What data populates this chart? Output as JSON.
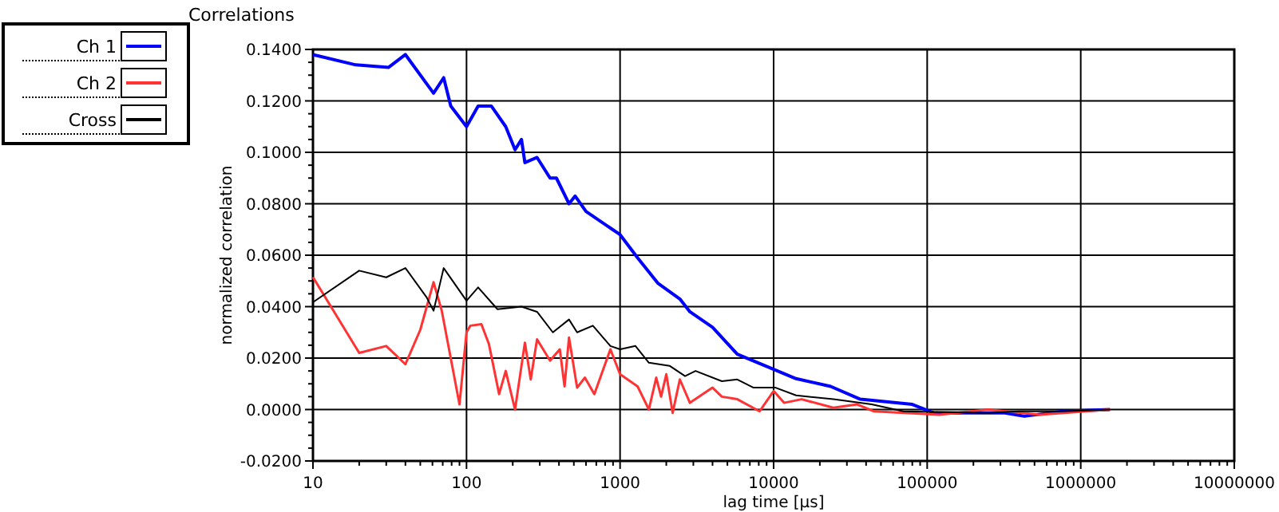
{
  "chart_data": {
    "type": "line",
    "title": "Correlations",
    "xlabel": "lag time [µs]",
    "ylabel": "normalized correlation",
    "log": "x",
    "grid": true,
    "legend": "top left",
    "marker": "none",
    "line_style": "solid",
    "xlim": [
      10,
      10000000
    ],
    "xticks": [
      10,
      100,
      1000,
      10000,
      100000,
      1000000,
      10000000
    ],
    "ylim": [
      -0.02,
      0.14
    ],
    "yticks": [
      {
        "value": -0.02,
        "label": "-0.0200"
      },
      {
        "value": 0,
        "label": "0.0000"
      },
      {
        "value": 0.02,
        "label": "0.0200"
      },
      {
        "value": 0.04,
        "label": "0.0400"
      },
      {
        "value": 0.06,
        "label": "0.0600"
      },
      {
        "value": 0.08,
        "label": "0.0800"
      },
      {
        "value": 0.1,
        "label": "0.1000"
      },
      {
        "value": 0.12,
        "label": "0.1200"
      },
      {
        "value": 0.14,
        "label": "0.1400"
      }
    ],
    "series": [
      {
        "name": "Ch 1",
        "color": "#0000ff",
        "x": [
          10,
          19,
          31,
          40,
          61,
          71,
          79,
          100,
          119,
          145,
          180,
          207,
          228,
          240,
          288,
          350,
          385,
          465,
          510,
          600,
          1000,
          1300,
          1770,
          2450,
          2850,
          4000,
          5800,
          8800,
          14000,
          23500,
          36700,
          80000,
          110000,
          320000,
          430000,
          760000,
          1550000
        ],
        "values": [
          0.138,
          0.134,
          0.133,
          0.138,
          0.123,
          0.129,
          0.118,
          0.11,
          0.118,
          0.118,
          0.11,
          0.101,
          0.105,
          0.096,
          0.098,
          0.09,
          0.09,
          0.08,
          0.083,
          0.077,
          0.068,
          0.059,
          0.049,
          0.043,
          0.038,
          0.032,
          0.0215,
          0.017,
          0.012,
          0.009,
          0.004,
          0.002,
          -0.0013,
          -0.0013,
          -0.0026,
          -0.0007,
          0
        ]
      },
      {
        "name": "Ch 2",
        "color": "#ff3333",
        "x": [
          10,
          20,
          30,
          40,
          50,
          61,
          69,
          90,
          100,
          106,
          125,
          140,
          163,
          180,
          207,
          240,
          262,
          288,
          350,
          405,
          435,
          465,
          525,
          590,
          680,
          865,
          1000,
          1300,
          1540,
          1720,
          1850,
          2000,
          2200,
          2450,
          2850,
          4000,
          4600,
          5800,
          8100,
          10000,
          11700,
          15200,
          24500,
          35000,
          45000,
          120000,
          250000,
          540000,
          1550000
        ],
        "values": [
          0.0515,
          0.022,
          0.0247,
          0.0176,
          0.031,
          0.0495,
          0.0384,
          0.002,
          0.03,
          0.0326,
          0.0332,
          0.0254,
          0.006,
          0.015,
          0,
          0.026,
          0.0117,
          0.0273,
          0.019,
          0.0234,
          0.009,
          0.028,
          0.0085,
          0.0124,
          0.006,
          0.0234,
          0.0137,
          0.009,
          0,
          0.0124,
          0.005,
          0.0137,
          -0.0013,
          0.0117,
          0.0026,
          0.0085,
          0.005,
          0.004,
          -0.0007,
          0.0072,
          0.0026,
          0.004,
          0.0007,
          0.002,
          -0.0007,
          -0.002,
          0,
          -0.002,
          0
        ]
      },
      {
        "name": "Cross",
        "color": "#000000",
        "x": [
          10,
          20,
          30,
          40,
          55,
          61,
          71,
          100,
          119,
          159,
          228,
          288,
          365,
          465,
          525,
          665,
          865,
          1000,
          1260,
          1540,
          2100,
          2650,
          3100,
          4600,
          5800,
          7400,
          10300,
          14000,
          24500,
          43500,
          70000,
          250000,
          400000,
          760000,
          1550000
        ],
        "values": [
          0.0417,
          0.054,
          0.0514,
          0.055,
          0.0436,
          0.0384,
          0.055,
          0.0423,
          0.0475,
          0.039,
          0.04,
          0.038,
          0.03,
          0.035,
          0.03,
          0.0326,
          0.0247,
          0.0234,
          0.0247,
          0.0182,
          0.017,
          0.013,
          0.015,
          0.011,
          0.0117,
          0.0085,
          0.0085,
          0.0055,
          0.004,
          0.002,
          -0.0007,
          -0.0013,
          -0.0007,
          -0.0007,
          0
        ]
      }
    ]
  }
}
